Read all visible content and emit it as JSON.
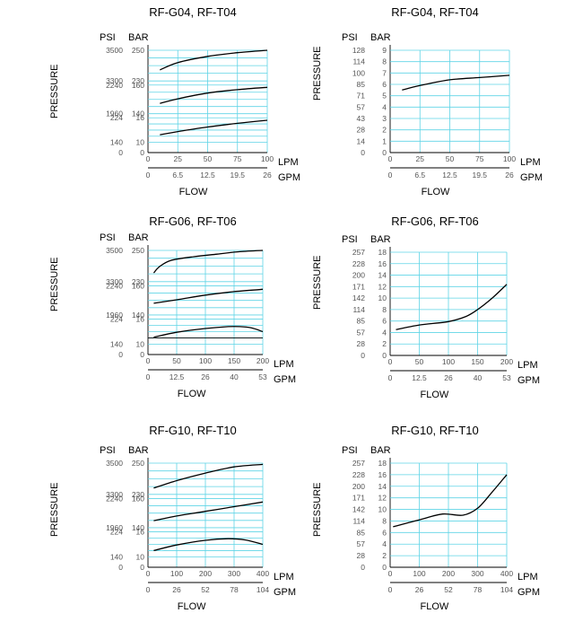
{
  "colors": {
    "grid": "#5fd4e6",
    "curve": "#000000",
    "text": "#000000",
    "tick_text": "#555555"
  },
  "chart_data": [
    {
      "type": "line",
      "title": "RF-G04, RF-T04",
      "psi_label": "PSI",
      "bar_label": "BAR",
      "pressure_label": "PRESSURE",
      "lpm_label": "LPM",
      "gpm_label": "GPM",
      "flow_label": "FLOW",
      "xlim": [
        0,
        100
      ],
      "lpm_ticks": [
        "0",
        "25",
        "50",
        "75",
        "100"
      ],
      "gpm_ticks": [
        "0",
        "6.5",
        "12.5",
        "19.5",
        "26"
      ],
      "panels": [
        {
          "bar_ticks": [
            "250",
            "230"
          ],
          "psi_ticks": [
            "3500",
            "3300"
          ],
          "ylim": [
            225,
            250
          ],
          "x": [
            10,
            25,
            50,
            75,
            100
          ],
          "y": [
            234,
            240,
            245,
            248,
            250
          ]
        },
        {
          "bar_ticks": [
            "160",
            "140"
          ],
          "psi_ticks": [
            "2240",
            "1960"
          ],
          "ylim": [
            135,
            160
          ],
          "x": [
            10,
            25,
            50,
            75,
            100
          ],
          "y": [
            144,
            148,
            153,
            156,
            158
          ]
        },
        {
          "bar_ticks": [
            "16",
            "10"
          ],
          "psi_ticks": [
            "224",
            "140"
          ],
          "ylim": [
            8,
            16
          ],
          "x": [
            10,
            25,
            50,
            75,
            100
          ],
          "y": [
            10.5,
            11.5,
            13,
            14.2,
            15.2
          ]
        }
      ],
      "zero_bar": "0",
      "zero_psi": "0"
    },
    {
      "type": "line",
      "title": "RF-G04, RF-T04",
      "psi_label": "PSI",
      "bar_label": "BAR",
      "pressure_label": "PRESSURE",
      "lpm_label": "LPM",
      "gpm_label": "GPM",
      "flow_label": "FLOW",
      "xlim": [
        0,
        100
      ],
      "lpm_ticks": [
        "0",
        "25",
        "50",
        "75",
        "100"
      ],
      "gpm_ticks": [
        "0",
        "6.5",
        "12.5",
        "19.5",
        "26"
      ],
      "bar_ticks": [
        "0",
        "1",
        "2",
        "3",
        "4",
        "5",
        "6",
        "7",
        "8",
        "9"
      ],
      "psi_ticks": [
        "0",
        "14",
        "28",
        "43",
        "57",
        "71",
        "85",
        "100",
        "114",
        "128"
      ],
      "ylim": [
        0,
        9
      ],
      "x": [
        10,
        25,
        50,
        75,
        100
      ],
      "y": [
        5.5,
        5.9,
        6.4,
        6.6,
        6.8
      ]
    },
    {
      "type": "line",
      "title": "RF-G06, RF-T06",
      "psi_label": "PSI",
      "bar_label": "BAR",
      "pressure_label": "PRESSURE",
      "lpm_label": "LPM",
      "gpm_label": "GPM",
      "flow_label": "FLOW",
      "xlim": [
        0,
        200
      ],
      "lpm_ticks": [
        "0",
        "50",
        "100",
        "150",
        "200"
      ],
      "gpm_ticks": [
        "0",
        "12.5",
        "26",
        "40",
        "53"
      ],
      "panels": [
        {
          "bar_ticks": [
            "250",
            "230"
          ],
          "psi_ticks": [
            "3500",
            "3300"
          ],
          "ylim": [
            225,
            250
          ],
          "x": [
            10,
            20,
            40,
            80,
            120,
            160,
            200
          ],
          "y": [
            232,
            237,
            242,
            245,
            247,
            249,
            250
          ]
        },
        {
          "bar_ticks": [
            "160",
            "140"
          ],
          "psi_ticks": [
            "2240",
            "1960"
          ],
          "ylim": [
            135,
            160
          ],
          "x": [
            10,
            50,
            100,
            150,
            200
          ],
          "y": [
            145,
            148,
            152,
            155,
            157
          ]
        },
        {
          "bar_ticks": [
            "16",
            "10"
          ],
          "psi_ticks": [
            "224",
            "140"
          ],
          "ylim": [
            8,
            16
          ],
          "x": [
            10,
            50,
            100,
            140,
            160,
            180,
            200
          ],
          "y": [
            10.2,
            11.8,
            13,
            13.6,
            13.6,
            13.2,
            12
          ],
          "baseline": 10
        }
      ],
      "zero_bar": "0",
      "zero_psi": "0"
    },
    {
      "type": "line",
      "title": "RF-G06, RF-T06",
      "psi_label": "PSI",
      "bar_label": "BAR",
      "pressure_label": "PRESSURE",
      "lpm_label": "LPM",
      "gpm_label": "GPM",
      "flow_label": "FLOW",
      "xlim": [
        0,
        200
      ],
      "lpm_ticks": [
        "0",
        "50",
        "100",
        "150",
        "200"
      ],
      "gpm_ticks": [
        "0",
        "12.5",
        "26",
        "40",
        "53"
      ],
      "bar_ticks": [
        "0",
        "2",
        "4",
        "6",
        "8",
        "10",
        "12",
        "14",
        "16",
        "18"
      ],
      "psi_ticks": [
        "0",
        "28",
        "57",
        "85",
        "114",
        "142",
        "171",
        "200",
        "228",
        "257"
      ],
      "ylim": [
        0,
        18
      ],
      "x": [
        10,
        50,
        100,
        130,
        150,
        175,
        200
      ],
      "y": [
        4.5,
        5.3,
        5.9,
        6.8,
        8,
        10,
        12.4
      ]
    },
    {
      "type": "line",
      "title": "RF-G10, RF-T10",
      "psi_label": "PSI",
      "bar_label": "BAR",
      "pressure_label": "PRESSURE",
      "lpm_label": "LPM",
      "gpm_label": "GPM",
      "flow_label": "FLOW",
      "xlim": [
        0,
        400
      ],
      "lpm_ticks": [
        "0",
        "100",
        "200",
        "300",
        "400"
      ],
      "gpm_ticks": [
        "0",
        "26",
        "52",
        "78",
        "104"
      ],
      "panels": [
        {
          "bar_ticks": [
            "250",
            "230"
          ],
          "psi_ticks": [
            "3500",
            "3300"
          ],
          "ylim": [
            225,
            250
          ],
          "x": [
            20,
            100,
            200,
            300,
            400
          ],
          "y": [
            230,
            236,
            242,
            247,
            249
          ]
        },
        {
          "bar_ticks": [
            "160",
            "140"
          ],
          "psi_ticks": [
            "2240",
            "1960"
          ],
          "ylim": [
            135,
            160
          ],
          "x": [
            20,
            100,
            200,
            300,
            400
          ],
          "y": [
            141,
            145,
            149,
            153,
            157
          ]
        },
        {
          "bar_ticks": [
            "16",
            "10"
          ],
          "psi_ticks": [
            "224",
            "140"
          ],
          "ylim": [
            8,
            16
          ],
          "x": [
            20,
            100,
            200,
            280,
            340,
            400
          ],
          "y": [
            10,
            11.8,
            13.3,
            13.8,
            13.4,
            12
          ]
        }
      ],
      "zero_bar": "0",
      "zero_psi": "0"
    },
    {
      "type": "line",
      "title": "RF-G10, RF-T10",
      "psi_label": "PSI",
      "bar_label": "BAR",
      "pressure_label": "PRESSURE",
      "lpm_label": "LPM",
      "gpm_label": "GPM",
      "flow_label": "FLOW",
      "xlim": [
        0,
        400
      ],
      "lpm_ticks": [
        "0",
        "100",
        "200",
        "300",
        "400"
      ],
      "gpm_ticks": [
        "0",
        "26",
        "52",
        "78",
        "104"
      ],
      "bar_ticks": [
        "0",
        "2",
        "4",
        "6",
        "8",
        "10",
        "12",
        "14",
        "16",
        "18"
      ],
      "psi_ticks": [
        "0",
        "28",
        "57",
        "85",
        "114",
        "142",
        "171",
        "200",
        "228",
        "257"
      ],
      "ylim": [
        0,
        18
      ],
      "x": [
        10,
        100,
        180,
        250,
        300,
        350,
        400
      ],
      "y": [
        7,
        8.2,
        9.2,
        9,
        10.2,
        13,
        16
      ]
    }
  ]
}
